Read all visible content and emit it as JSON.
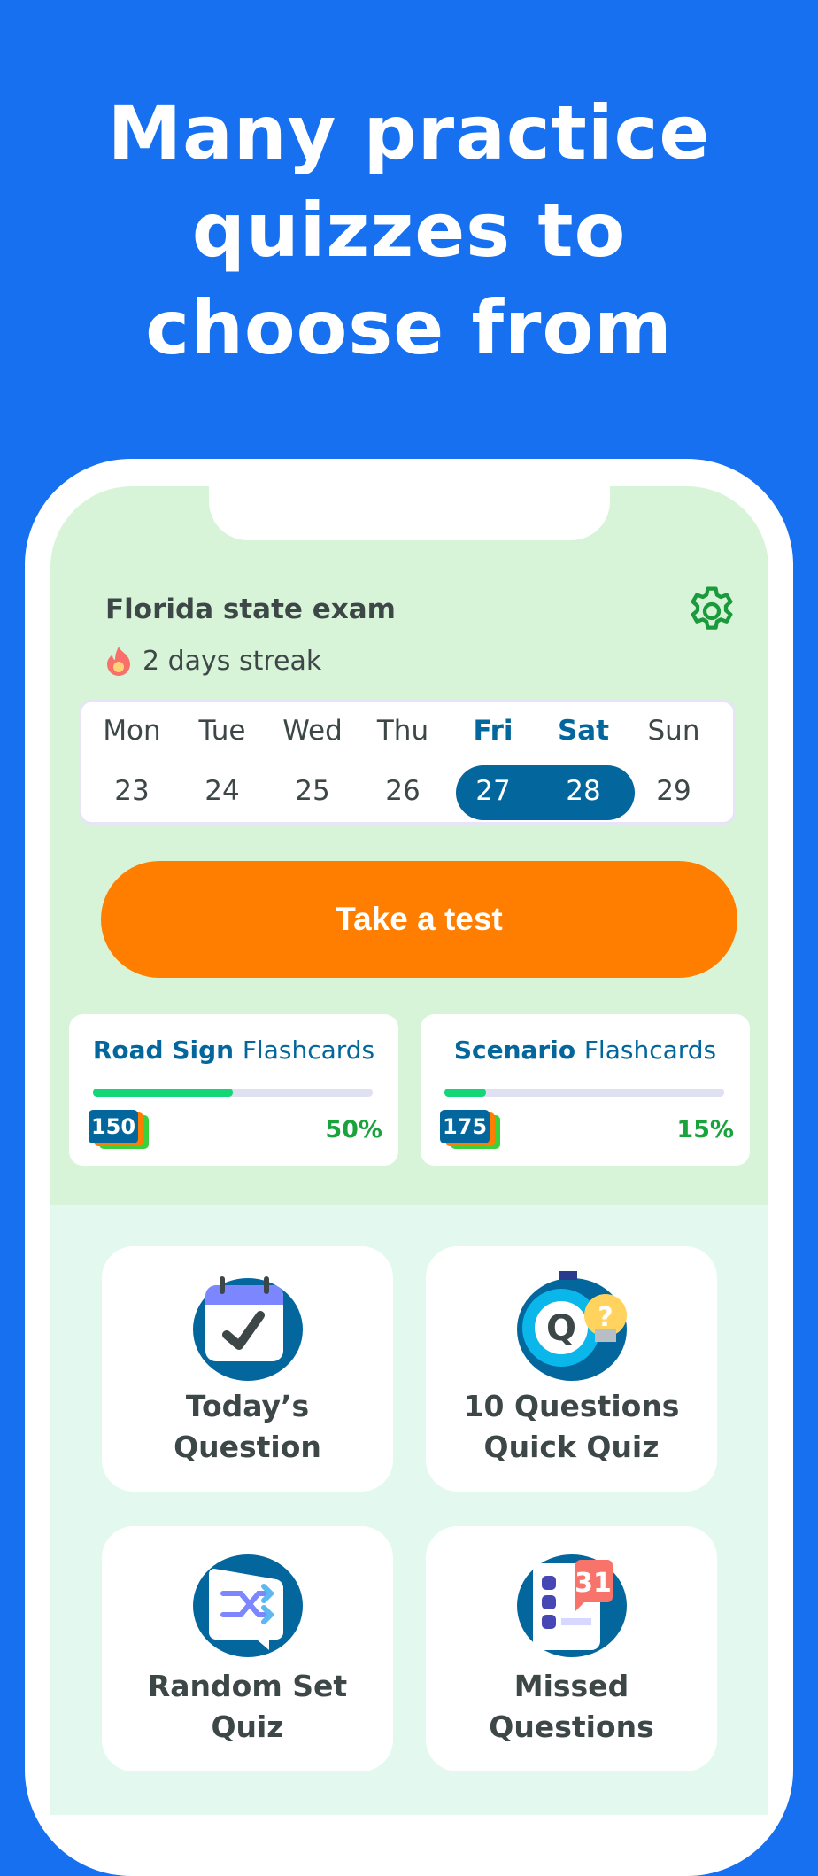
{
  "headline": {
    "line1": "Many practice",
    "line2": "quizzes to",
    "line3": "choose from"
  },
  "exam": {
    "title": "Florida state exam",
    "streak": "2 days streak",
    "streak_icon": "fire-icon",
    "settings_icon": "gear-icon"
  },
  "calendar": {
    "days": [
      {
        "name": "Mon",
        "date": "23",
        "highlighted": false
      },
      {
        "name": "Tue",
        "date": "24",
        "highlighted": false
      },
      {
        "name": "Wed",
        "date": "25",
        "highlighted": false
      },
      {
        "name": "Thu",
        "date": "26",
        "highlighted": false
      },
      {
        "name": "Fri",
        "date": "27",
        "highlighted": true
      },
      {
        "name": "Sat",
        "date": "28",
        "highlighted": true
      },
      {
        "name": "Sun",
        "date": "29",
        "highlighted": false
      }
    ]
  },
  "take_test": "Take a test",
  "flashcards": [
    {
      "bold": "Road Sign",
      "rest": "Flashcards",
      "count": "150",
      "percent_label": "50%",
      "progress": 0.5
    },
    {
      "bold": "Scenario",
      "rest": "Flashcards",
      "count": "175",
      "percent_label": "15%",
      "progress": 0.15
    }
  ],
  "tiles": [
    {
      "line1": "Today’s",
      "line2": "Question",
      "icon": "calendar-check-icon"
    },
    {
      "line1": "10 Questions",
      "line2": "Quick Quiz",
      "icon": "stopwatch-quiz-icon"
    },
    {
      "line1": "Random Set",
      "line2": "Quiz",
      "icon": "shuffle-icon"
    },
    {
      "line1": "Missed",
      "line2": "Questions",
      "icon": "missed-list-icon",
      "badge": "31"
    }
  ],
  "colors": {
    "background": "#1670f0",
    "accent_orange": "#ff7e00",
    "primary_blue": "#03679e",
    "green_panel": "#d8f4d8",
    "progress": "#12d677"
  }
}
